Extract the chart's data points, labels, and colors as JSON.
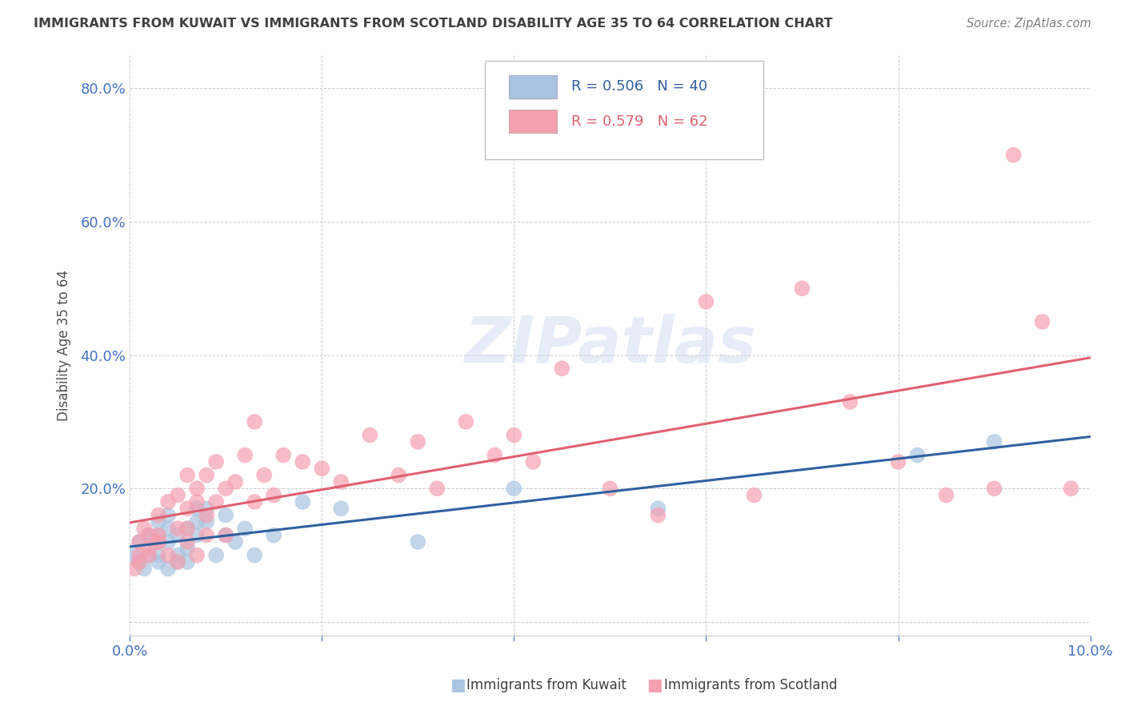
{
  "title": "IMMIGRANTS FROM KUWAIT VS IMMIGRANTS FROM SCOTLAND DISABILITY AGE 35 TO 64 CORRELATION CHART",
  "source": "Source: ZipAtlas.com",
  "ylabel_label": "Disability Age 35 to 64",
  "xlim": [
    0.0,
    0.1
  ],
  "ylim": [
    -0.02,
    0.85
  ],
  "yticks": [
    0.0,
    0.2,
    0.4,
    0.6,
    0.8
  ],
  "xticks": [
    0.0,
    0.02,
    0.04,
    0.06,
    0.08,
    0.1
  ],
  "xtick_labels": [
    "0.0%",
    "",
    "",
    "",
    "",
    "10.0%"
  ],
  "ytick_labels": [
    "",
    "20.0%",
    "40.0%",
    "60.0%",
    "80.0%"
  ],
  "kuwait_R": 0.506,
  "kuwait_N": 40,
  "scotland_R": 0.579,
  "scotland_N": 62,
  "kuwait_color": "#a8c4e0",
  "scotland_color": "#f4a0b0",
  "kuwait_line_color": "#3060a0",
  "scotland_line_color": "#e06070",
  "watermark": "ZIPatlas",
  "kuwait_x": [
    0.0005,
    0.001,
    0.001,
    0.0015,
    0.002,
    0.002,
    0.0025,
    0.003,
    0.003,
    0.003,
    0.003,
    0.004,
    0.004,
    0.004,
    0.004,
    0.005,
    0.005,
    0.005,
    0.006,
    0.006,
    0.006,
    0.007,
    0.007,
    0.007,
    0.008,
    0.008,
    0.009,
    0.01,
    0.01,
    0.011,
    0.012,
    0.013,
    0.015,
    0.018,
    0.022,
    0.03,
    0.04,
    0.055,
    0.082,
    0.09
  ],
  "kuwait_y": [
    0.1,
    0.09,
    0.12,
    0.08,
    0.13,
    0.1,
    0.12,
    0.09,
    0.13,
    0.1,
    0.15,
    0.08,
    0.12,
    0.16,
    0.14,
    0.13,
    0.1,
    0.09,
    0.14,
    0.11,
    0.09,
    0.13,
    0.17,
    0.15,
    0.15,
    0.17,
    0.1,
    0.16,
    0.13,
    0.12,
    0.14,
    0.1,
    0.13,
    0.18,
    0.17,
    0.12,
    0.2,
    0.17,
    0.25,
    0.27
  ],
  "scotland_x": [
    0.0005,
    0.001,
    0.001,
    0.001,
    0.0015,
    0.002,
    0.002,
    0.002,
    0.003,
    0.003,
    0.003,
    0.003,
    0.004,
    0.004,
    0.005,
    0.005,
    0.005,
    0.006,
    0.006,
    0.006,
    0.006,
    0.007,
    0.007,
    0.007,
    0.008,
    0.008,
    0.008,
    0.009,
    0.009,
    0.01,
    0.01,
    0.011,
    0.012,
    0.013,
    0.013,
    0.014,
    0.015,
    0.016,
    0.018,
    0.02,
    0.022,
    0.025,
    0.028,
    0.03,
    0.032,
    0.035,
    0.038,
    0.04,
    0.042,
    0.045,
    0.05,
    0.055,
    0.06,
    0.065,
    0.07,
    0.075,
    0.08,
    0.085,
    0.09,
    0.092,
    0.095,
    0.098
  ],
  "scotland_y": [
    0.08,
    0.12,
    0.1,
    0.09,
    0.14,
    0.1,
    0.13,
    0.11,
    0.12,
    0.16,
    0.13,
    0.12,
    0.1,
    0.18,
    0.14,
    0.09,
    0.19,
    0.22,
    0.14,
    0.17,
    0.12,
    0.1,
    0.18,
    0.2,
    0.16,
    0.13,
    0.22,
    0.18,
    0.24,
    0.13,
    0.2,
    0.21,
    0.25,
    0.18,
    0.3,
    0.22,
    0.19,
    0.25,
    0.24,
    0.23,
    0.21,
    0.28,
    0.22,
    0.27,
    0.2,
    0.3,
    0.25,
    0.28,
    0.24,
    0.38,
    0.2,
    0.16,
    0.48,
    0.19,
    0.5,
    0.33,
    0.24,
    0.19,
    0.2,
    0.7,
    0.45,
    0.2
  ],
  "background_color": "#ffffff",
  "grid_color": "#cccccc",
  "tick_label_color": "#4472c4",
  "title_color": "#404040",
  "source_color": "#808080"
}
